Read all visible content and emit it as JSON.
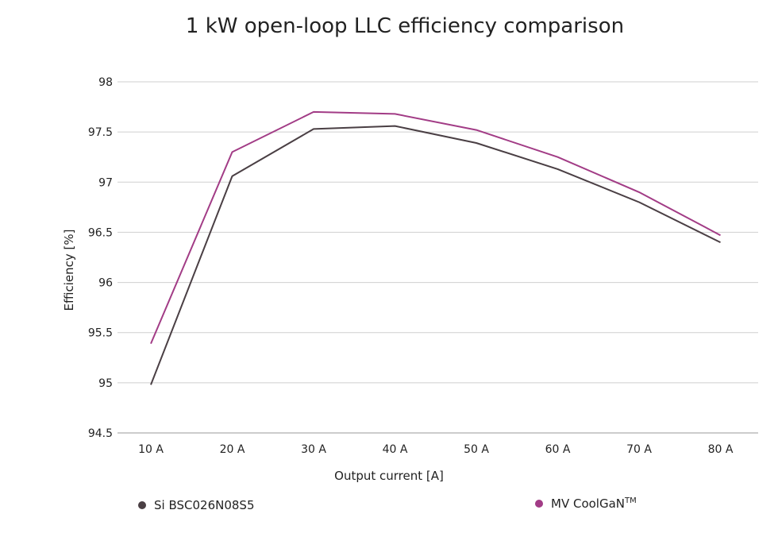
{
  "chart_data": {
    "type": "line",
    "title": "1 kW open-loop LLC efficiency comparison",
    "xlabel": "Output current [A]",
    "ylabel": "Efficiency [%]",
    "categories": [
      "10 A",
      "20 A",
      "30 A",
      "40 A",
      "50 A",
      "60 A",
      "70 A",
      "80 A"
    ],
    "ylim": [
      94.5,
      98
    ],
    "yticks": [
      "98",
      "97.5",
      "97",
      "96.5",
      "96",
      "95.5",
      "95",
      "94.5"
    ],
    "ytick_values": [
      98,
      97.5,
      97,
      96.5,
      96,
      95.5,
      95,
      94.5
    ],
    "grid": true,
    "series": [
      {
        "name": "Si BSC026N08S5",
        "color": "#4a3f44",
        "values": [
          94.98,
          97.06,
          97.53,
          97.56,
          97.39,
          97.13,
          96.8,
          96.4
        ]
      },
      {
        "name": "MV CoolGaN",
        "name_sup": "TM",
        "color": "#a23c86",
        "values": [
          95.39,
          97.3,
          97.7,
          97.68,
          97.52,
          97.25,
          96.9,
          96.47
        ]
      }
    ],
    "legend_position": "bottom"
  }
}
